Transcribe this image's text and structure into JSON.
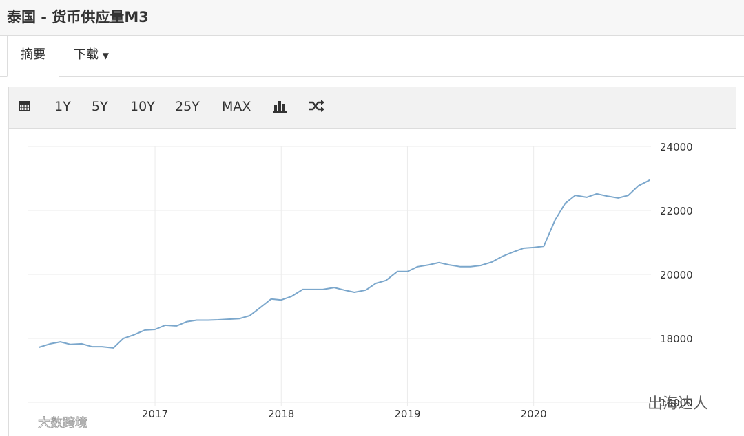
{
  "page": {
    "title": "泰国 - 货币供应量M3",
    "tabs": [
      "摘要",
      "下载"
    ],
    "toolbar": [
      "1Y",
      "5Y",
      "10Y",
      "25Y",
      "MAX"
    ],
    "watermarks": [
      "出海达人",
      "大数跨境"
    ]
  },
  "chart_data": {
    "type": "line",
    "x": [
      2016.08,
      2016.17,
      2016.25,
      2016.33,
      2016.42,
      2016.5,
      2016.58,
      2016.67,
      2016.75,
      2016.83,
      2016.92,
      2017,
      2017.08,
      2017.17,
      2017.25,
      2017.33,
      2017.42,
      2017.5,
      2017.58,
      2017.67,
      2017.75,
      2017.83,
      2017.92,
      2018,
      2018.08,
      2018.17,
      2018.25,
      2018.33,
      2018.42,
      2018.5,
      2018.58,
      2018.67,
      2018.75,
      2018.83,
      2018.92,
      2019,
      2019.08,
      2019.17,
      2019.25,
      2019.33,
      2019.42,
      2019.5,
      2019.58,
      2019.67,
      2019.75,
      2019.83,
      2019.92,
      2020,
      2020.08,
      2020.17,
      2020.25,
      2020.33,
      2020.42,
      2020.5,
      2020.58,
      2020.67,
      2020.75,
      2020.83,
      2020.92
    ],
    "series": [
      {
        "color": "#7ba7cc",
        "values": [
          17720,
          17830,
          17890,
          17810,
          17830,
          17740,
          17740,
          17700,
          18000,
          18110,
          18260,
          18280,
          18410,
          18390,
          18520,
          18570,
          18570,
          18580,
          18600,
          18620,
          18710,
          18950,
          19230,
          19200,
          19310,
          19530,
          19530,
          19530,
          19590,
          19510,
          19440,
          19510,
          19720,
          19810,
          20090,
          20090,
          20240,
          20300,
          20370,
          20300,
          20240,
          20240,
          20280,
          20390,
          20560,
          20690,
          20820,
          20840,
          20880,
          21700,
          22220,
          22470,
          22410,
          22520,
          22450,
          22390,
          22470,
          22770,
          22950
        ]
      }
    ],
    "xlim": [
      2015.99,
      2020.93
    ],
    "xticks": [
      2017,
      2018,
      2019,
      2020
    ],
    "ylim": [
      16000,
      24000
    ],
    "yticks": [
      16000,
      18000,
      20000,
      22000,
      24000
    ],
    "grid": true
  }
}
